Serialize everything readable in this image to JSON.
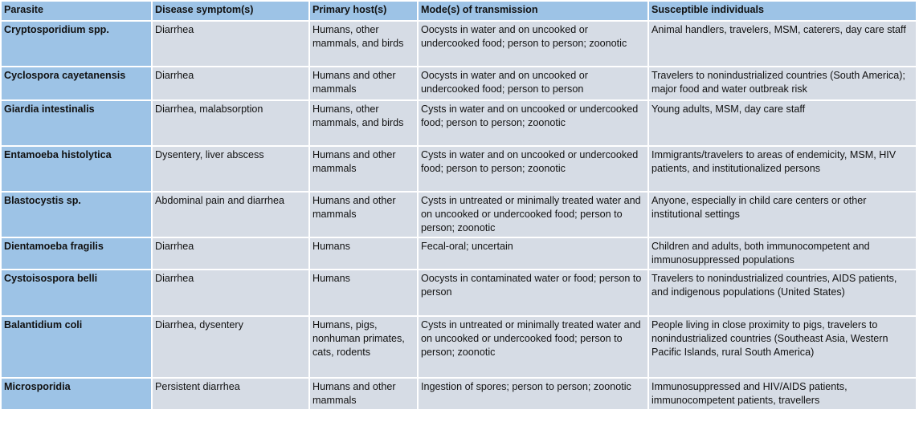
{
  "colors": {
    "header": "#9dc3e6",
    "first_column": "#9dc3e6",
    "cell": "#d6dce5"
  },
  "headers": [
    "Parasite",
    "Disease symptom(s)",
    "Primary host(s)",
    "Mode(s) of transmission",
    "Susceptible individuals"
  ],
  "rows": [
    [
      "Cryptosporidium spp.",
      "Diarrhea",
      "Humans, other mammals, and birds",
      "Oocysts in water and on uncooked or undercooked food; person to person; zoonotic",
      "Animal handlers, travelers, MSM, caterers, day care staff"
    ],
    [
      "Cyclospora cayetanensis",
      "Diarrhea",
      "Humans and other mammals",
      "Oocysts in water and on uncooked or undercooked food; person to person",
      "Travelers to nonindustrialized countries (South America); major food and water outbreak risk"
    ],
    [
      "Giardia intestinalis",
      "Diarrhea, malabsorption",
      "Humans, other mammals, and birds",
      "Cysts in water and on uncooked or undercooked food; person to person; zoonotic",
      "Young adults, MSM, day care staff"
    ],
    [
      "Entamoeba histolytica",
      "Dysentery, liver abscess",
      "Humans and other mammals",
      "Cysts in water and on uncooked or undercooked food; person to person; zoonotic",
      "Immigrants/travelers to areas of endemicity, MSM, HIV patients, and institutionalized persons"
    ],
    [
      "Blastocystis sp.",
      "Abdominal pain and diarrhea",
      "Humans and other mammals",
      "Cysts in untreated or minimally treated water and on uncooked or undercooked food; person to person; zoonotic",
      "Anyone, especially in child care centers or other institutional settings"
    ],
    [
      "Dientamoeba fragilis",
      "Diarrhea",
      "Humans",
      "Fecal-oral; uncertain",
      "Children and adults, both immunocompetent and immunosuppressed populations"
    ],
    [
      "Cystoisospora belli",
      "Diarrhea",
      "Humans",
      "Oocysts in contaminated water or food; person to person",
      "Travelers to nonindustrialized countries, AIDS patients, and indigenous populations (United States)"
    ],
    [
      "Balantidium coli",
      "Diarrhea, dysentery",
      "Humans, pigs, nonhuman primates, cats, rodents",
      "Cysts in untreated or minimally treated water and on uncooked or undercooked food; person to person; zoonotic",
      "People living in close proximity to pigs, travelers to nonindustrialized countries (Southeast Asia, Western Pacific Islands, rural South America)"
    ],
    [
      "Microsporidia",
      "Persistent diarrhea",
      "Humans and other mammals",
      "Ingestion of spores; person to person; zoonotic",
      "Immunosuppressed and HIV/AIDS patients, immunocompetent patients, travellers"
    ]
  ]
}
